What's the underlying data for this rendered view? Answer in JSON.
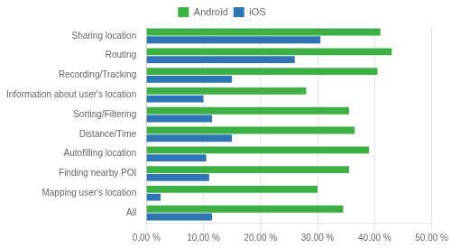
{
  "chart_data": {
    "type": "bar",
    "orientation": "horizontal",
    "categories": [
      "Sharing location",
      "Routing",
      "Recording/Tracking",
      "Information about user's location",
      "Sorting/Filtering",
      "Distance/Time",
      "Autofilling location",
      "Finding nearby POI",
      "Mapping user's location",
      "All"
    ],
    "series": [
      {
        "name": "Android",
        "color": "#3CB043",
        "values": [
          41.0,
          43.0,
          40.5,
          28.0,
          35.5,
          36.5,
          39.0,
          35.5,
          30.0,
          34.5
        ]
      },
      {
        "name": "iOS",
        "color": "#2E75B6",
        "values": [
          30.5,
          26.0,
          15.0,
          10.0,
          11.5,
          15.0,
          10.5,
          11.0,
          2.5,
          11.5
        ]
      }
    ],
    "xlim": [
      0,
      50
    ],
    "xticks": [
      {
        "value": 0,
        "label": "0.00 %"
      },
      {
        "value": 10,
        "label": "10.00 %"
      },
      {
        "value": 20,
        "label": "20.00 %"
      },
      {
        "value": 30,
        "label": "30.00 %"
      },
      {
        "value": 40,
        "label": "40.00 %"
      },
      {
        "value": 50,
        "label": "50.00 %"
      }
    ],
    "grid": true,
    "legend": "top"
  }
}
